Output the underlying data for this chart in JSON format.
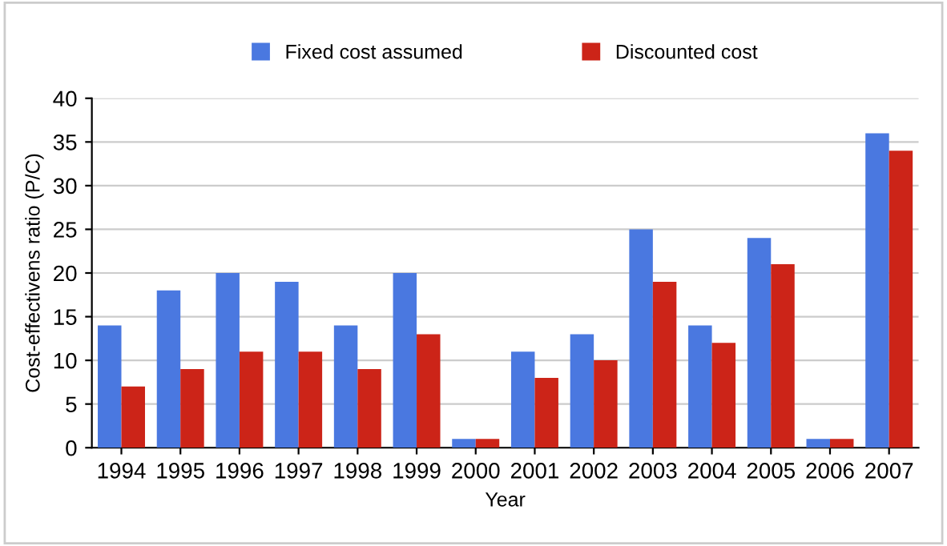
{
  "chart_data": {
    "type": "bar",
    "xlabel": "Year",
    "ylabel": "Cost-effectivens ratio (P/C)",
    "categories": [
      "1994",
      "1995",
      "1996",
      "1997",
      "1998",
      "1999",
      "2000",
      "2001",
      "2002",
      "2003",
      "2004",
      "2005",
      "2006",
      "2007"
    ],
    "series": [
      {
        "name": "Fixed cost assumed",
        "color": "#4a78e0",
        "values": [
          14,
          18,
          20,
          19,
          14,
          20,
          1,
          11,
          13,
          25,
          14,
          24,
          1,
          36
        ]
      },
      {
        "name": "Discounted cost",
        "color": "#cc2418",
        "values": [
          7,
          9,
          11,
          11,
          9,
          13,
          1,
          8,
          10,
          19,
          12,
          21,
          1,
          34
        ]
      }
    ],
    "ylim": [
      0,
      40
    ],
    "yticks": [
      0,
      5,
      10,
      15,
      20,
      25,
      30,
      35,
      40
    ],
    "grid": "y",
    "legend": "top"
  }
}
